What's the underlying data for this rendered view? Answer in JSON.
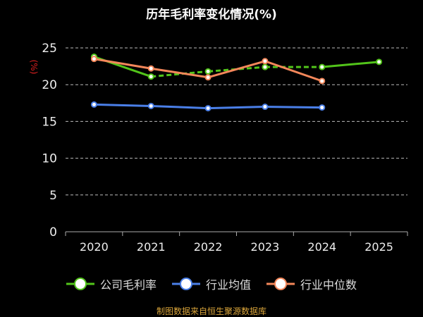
{
  "chart_data": {
    "type": "line",
    "title": "历年毛利率变化情况(%)",
    "ylabel": "(%)",
    "x": [
      "2020",
      "2021",
      "2022",
      "2023",
      "2024",
      "2025"
    ],
    "ylim": [
      0,
      25
    ],
    "yticks": [
      0,
      5,
      10,
      15,
      20,
      25
    ],
    "grid": true,
    "legend_position": "bottom",
    "series": [
      {
        "name": "公司毛利率",
        "color": "#52c41a",
        "values": [
          23.8,
          21.1,
          21.8,
          22.4,
          22.4,
          23.1
        ],
        "dashed_from": 3
      },
      {
        "name": "行业均值",
        "color": "#4a7fe8",
        "values": [
          17.3,
          17.1,
          16.8,
          17.0,
          16.9,
          null
        ]
      },
      {
        "name": "行业中位数",
        "color": "#f4875a",
        "values": [
          23.5,
          22.2,
          21.0,
          23.2,
          20.5,
          null
        ]
      }
    ]
  },
  "source": "制图数据来自恒生聚源数据库"
}
